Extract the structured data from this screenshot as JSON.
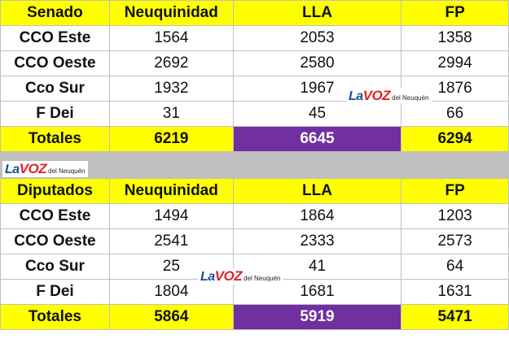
{
  "senado": {
    "headers": [
      "Senado",
      "Neuquinidad",
      "LLA",
      "FP"
    ],
    "rows": [
      [
        "CCO Este",
        "1564",
        "2053",
        "1358"
      ],
      [
        "CCO Oeste",
        "2692",
        "2580",
        "2994"
      ],
      [
        "Cco Sur",
        "1932",
        "1967",
        "1876"
      ],
      [
        "F Dei",
        "31",
        "45",
        "66"
      ]
    ],
    "totals": [
      "Totales",
      "6219",
      "6645",
      "6294"
    ]
  },
  "diputados": {
    "headers": [
      "Diputados",
      "Neuquinidad",
      "LLA",
      "FP"
    ],
    "rows": [
      [
        "CCO Este",
        "1494",
        "1864",
        "1203"
      ],
      [
        "CCO Oeste",
        "2541",
        "2333",
        "2573"
      ],
      [
        "Cco Sur",
        "25",
        "41",
        "64"
      ],
      [
        "F Dei",
        "1804",
        "1681",
        "1631"
      ]
    ],
    "totals": [
      "Totales",
      "5864",
      "5919",
      "5471"
    ]
  },
  "watermark": {
    "la": "La",
    "voz": "VOZ",
    "del": "del Neuquén"
  },
  "colors": {
    "header_yellow": "#ffff00",
    "lla_purple": "#7030a0",
    "separator_gray": "#c0c0c0"
  }
}
